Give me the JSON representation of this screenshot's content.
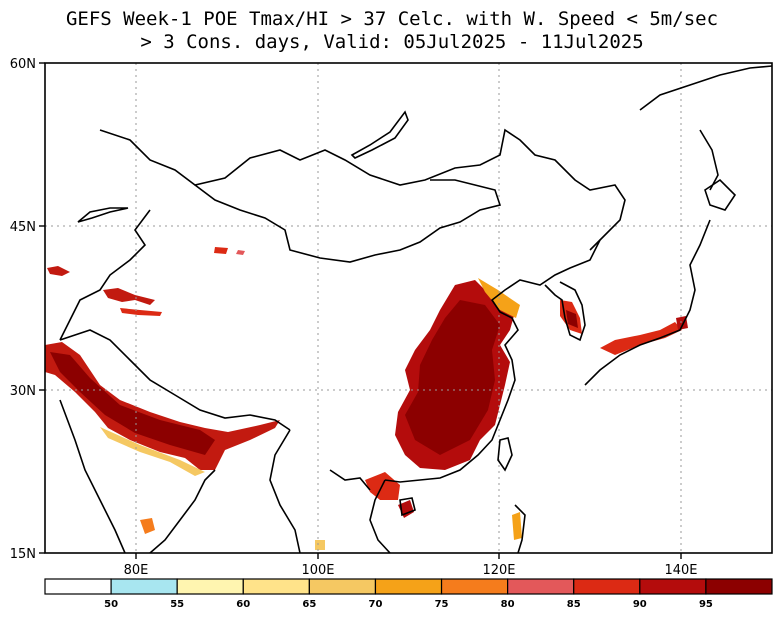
{
  "title_line1": "GEFS Week-1 POE Tmax/HI > 37 Celc. with W. Speed < 5m/sec",
  "title_line2": "> 3 Cons. days, Valid: 05Jul2025 - 11Jul2025",
  "map": {
    "lon_range": [
      70,
      150
    ],
    "lat_range": [
      15,
      60
    ],
    "lon_ticks": [
      "80E",
      "100E",
      "120E",
      "140E"
    ],
    "lat_ticks": [
      "60N",
      "45N",
      "30N",
      "15N"
    ],
    "grid": "dotted"
  },
  "colorbar": {
    "labels": [
      "50",
      "55",
      "60",
      "65",
      "70",
      "75",
      "80",
      "85",
      "90",
      "95"
    ],
    "colors": [
      "#ffffff",
      "#a8e6f0",
      "#fff5b0",
      "#ffe38a",
      "#f5c862",
      "#f5a218",
      "#f57c1c",
      "#e3585a",
      "#dc2a14",
      "#b40c0c",
      "#8c0000"
    ]
  },
  "palette": {
    "land_outline": "#000000",
    "grid": "#9a9a9a"
  }
}
